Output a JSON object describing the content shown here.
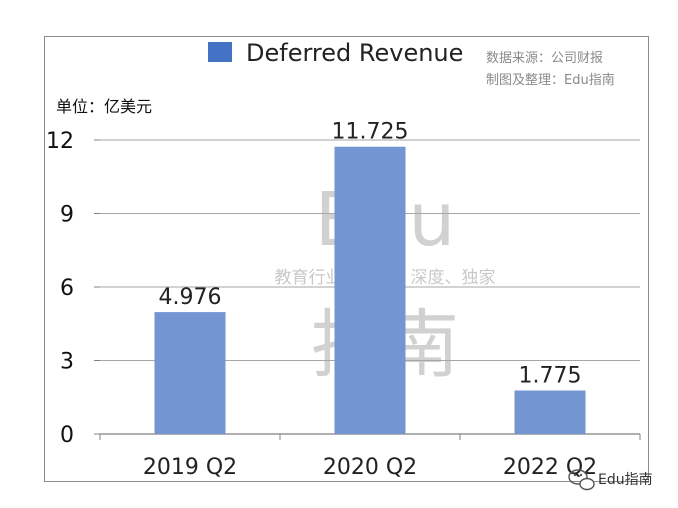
{
  "chart_data": {
    "type": "bar",
    "categories": [
      "2019 Q2",
      "2020 Q2",
      "2022 Q2"
    ],
    "series": [
      {
        "name": "Deferred Revenue",
        "values": [
          4.976,
          11.725,
          1.775
        ]
      }
    ],
    "data_labels": [
      "4.976",
      "11.725",
      "1.775"
    ],
    "title": "",
    "xlabel": "",
    "ylabel": "单位：亿美元",
    "ylim": [
      0,
      12
    ],
    "yticks": [
      0,
      3,
      6,
      9,
      12
    ],
    "grid": true,
    "legend_position": "top",
    "bar_color": "#7396d2",
    "legend_color": "#4472c4"
  },
  "source_note": [
    "数据来源：公司财报",
    "制图及整理：Edu指南"
  ],
  "watermark": {
    "big_top": "Edu",
    "tagline": "教育行业，前沿、深度、独家",
    "big_bottom": "指南",
    "corner": "Edu指南",
    "corner_icon": "wechat-icon"
  }
}
